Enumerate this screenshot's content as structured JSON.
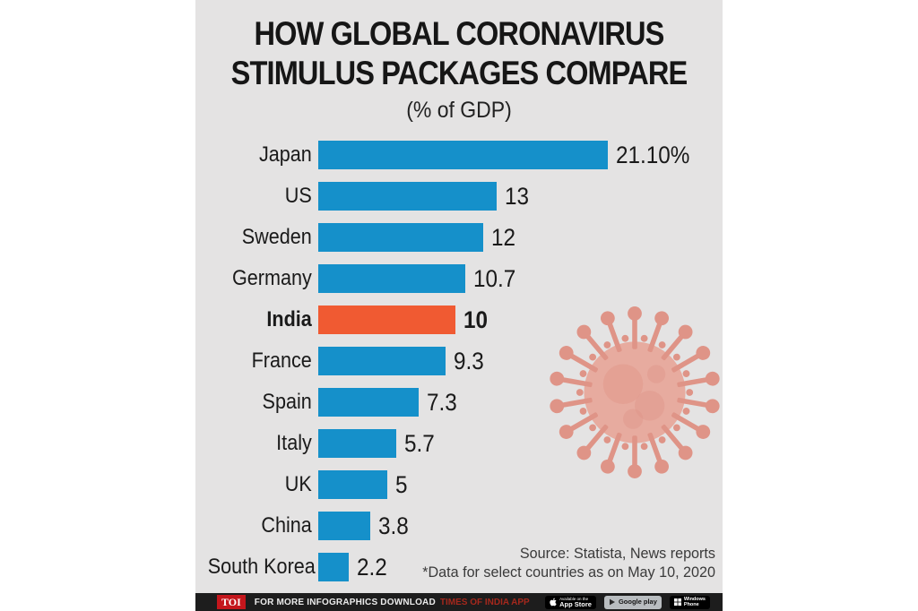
{
  "header": {
    "title_line1": "HOW GLOBAL CORONAVIRUS",
    "title_line2": "STIMULUS PACKAGES COMPARE",
    "subtitle": "(% of GDP)"
  },
  "chart_data": {
    "type": "bar",
    "orientation": "horizontal",
    "title": "HOW GLOBAL CORONAVIRUS STIMULUS PACKAGES COMPARE",
    "subtitle": "(% of GDP)",
    "unit": "% of GDP",
    "xlim": [
      0,
      21.1
    ],
    "grid": false,
    "legend": "none",
    "categories": [
      "Japan",
      "US",
      "Sweden",
      "Germany",
      "India",
      "France",
      "Spain",
      "Italy",
      "UK",
      "China",
      "South Korea"
    ],
    "values": [
      21.1,
      13,
      12,
      10.7,
      10,
      9.3,
      7.3,
      5.7,
      5,
      3.8,
      2.2
    ],
    "value_labels": [
      "21.10%",
      "13",
      "12",
      "10.7",
      "10",
      "9.3",
      "7.3",
      "5.7",
      "5",
      "3.8",
      "2.2"
    ],
    "highlight_category": "India",
    "bar_color": "#1590ca",
    "highlight_color": "#f05a32"
  },
  "source": {
    "line1": "Source: Statista, News reports",
    "line2": "*Data for select countries as on May 10, 2020"
  },
  "footer": {
    "logo": "TOI",
    "text": "FOR MORE  INFOGRAPHICS DOWNLOAD",
    "highlight_text": "TIMES OF INDIA APP",
    "badges": {
      "apple_top": "Available on the",
      "apple_main": "App Store",
      "google": "Google play",
      "windows_line1": "Windows",
      "windows_line2": "Phone"
    }
  },
  "watermark": {
    "icon": "coronavirus-icon",
    "color": "#df9487"
  },
  "colors": {
    "canvas_background": "#e4e3e3",
    "title_text": "#161616",
    "footer_bar": "#1d1d1d",
    "toi_red": "#c4161c",
    "footer_highlight_red": "#a5281d"
  }
}
